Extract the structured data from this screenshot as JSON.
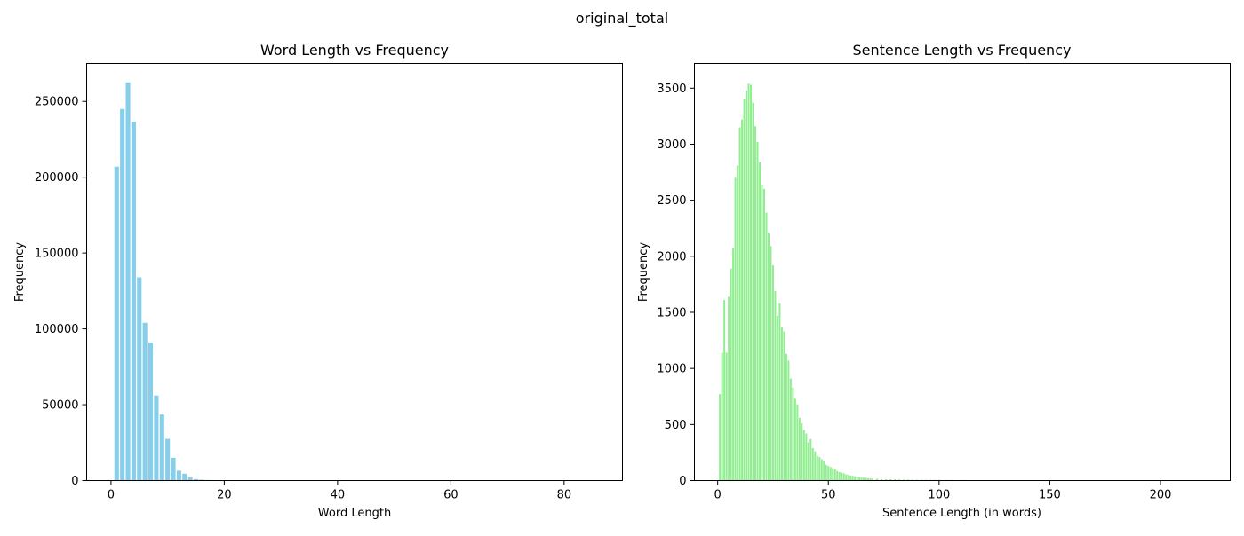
{
  "figure": {
    "suptitle": "original_total"
  },
  "chart_data": [
    {
      "type": "bar",
      "title": "Word Length vs Frequency",
      "xlabel": "Word Length",
      "ylabel": "Frequency",
      "xlim": [
        -4.3,
        90.3
      ],
      "ylim": [
        0,
        275000
      ],
      "xticks": [
        0,
        20,
        40,
        60,
        80
      ],
      "yticks": [
        0,
        50000,
        100000,
        150000,
        200000,
        250000
      ],
      "bar_width": 0.8,
      "color": "#87CEEB",
      "x": [
        1,
        2,
        3,
        4,
        5,
        6,
        7,
        8,
        9,
        10,
        11,
        12,
        13,
        14,
        15,
        16,
        17,
        18,
        19,
        20,
        21,
        22,
        23,
        24,
        25,
        30,
        35,
        40,
        50,
        60,
        70,
        80,
        86
      ],
      "values": [
        207000,
        245000,
        262500,
        236500,
        134000,
        104000,
        91000,
        56000,
        43500,
        27500,
        15000,
        6500,
        4500,
        2000,
        1000,
        600,
        350,
        200,
        120,
        80,
        50,
        30,
        20,
        15,
        10,
        5,
        3,
        2,
        1,
        1,
        1,
        1,
        1
      ]
    },
    {
      "type": "bar",
      "title": "Sentence Length vs Frequency",
      "xlabel": "Sentence Length (in words)",
      "ylabel": "Frequency",
      "xlim": [
        -10.5,
        231.5
      ],
      "ylim": [
        0,
        3720
      ],
      "xticks": [
        0,
        50,
        100,
        150,
        200
      ],
      "yticks": [
        0,
        500,
        1000,
        1500,
        2000,
        2500,
        3000,
        3500
      ],
      "bar_width": 0.8,
      "color": "#90EE90",
      "x": [
        1,
        2,
        3,
        4,
        5,
        6,
        7,
        8,
        9,
        10,
        11,
        12,
        13,
        14,
        15,
        16,
        17,
        18,
        19,
        20,
        21,
        22,
        23,
        24,
        25,
        26,
        27,
        28,
        29,
        30,
        31,
        32,
        33,
        34,
        35,
        36,
        37,
        38,
        39,
        40,
        41,
        42,
        43,
        44,
        45,
        46,
        47,
        48,
        49,
        50,
        51,
        52,
        53,
        54,
        55,
        56,
        57,
        58,
        59,
        60,
        61,
        62,
        63,
        64,
        65,
        66,
        67,
        68,
        69,
        70,
        72,
        74,
        76,
        78,
        80,
        82,
        84,
        86,
        88,
        90,
        92,
        94,
        96,
        98,
        100,
        103,
        106,
        110,
        114,
        118,
        122,
        126,
        130,
        135,
        140,
        145,
        150,
        156,
        162,
        168,
        175,
        182,
        190,
        200,
        210,
        220
      ],
      "values": [
        770,
        1140,
        1610,
        1140,
        1640,
        1890,
        2070,
        2700,
        2810,
        3150,
        3220,
        3400,
        3480,
        3540,
        3530,
        3370,
        3160,
        3020,
        2840,
        2640,
        2600,
        2390,
        2210,
        2090,
        1920,
        1690,
        1470,
        1580,
        1370,
        1330,
        1130,
        1070,
        910,
        830,
        730,
        680,
        560,
        510,
        450,
        420,
        340,
        370,
        290,
        260,
        220,
        210,
        190,
        170,
        140,
        130,
        120,
        110,
        100,
        85,
        75,
        70,
        65,
        55,
        50,
        45,
        42,
        38,
        35,
        32,
        28,
        26,
        24,
        22,
        20,
        18,
        16,
        14,
        13,
        12,
        11,
        10,
        9,
        9,
        8,
        8,
        7,
        7,
        6,
        6,
        6,
        5,
        5,
        5,
        4,
        4,
        4,
        4,
        3,
        3,
        3,
        3,
        3,
        2,
        2,
        2,
        2,
        2,
        2,
        2,
        2,
        2
      ]
    }
  ]
}
